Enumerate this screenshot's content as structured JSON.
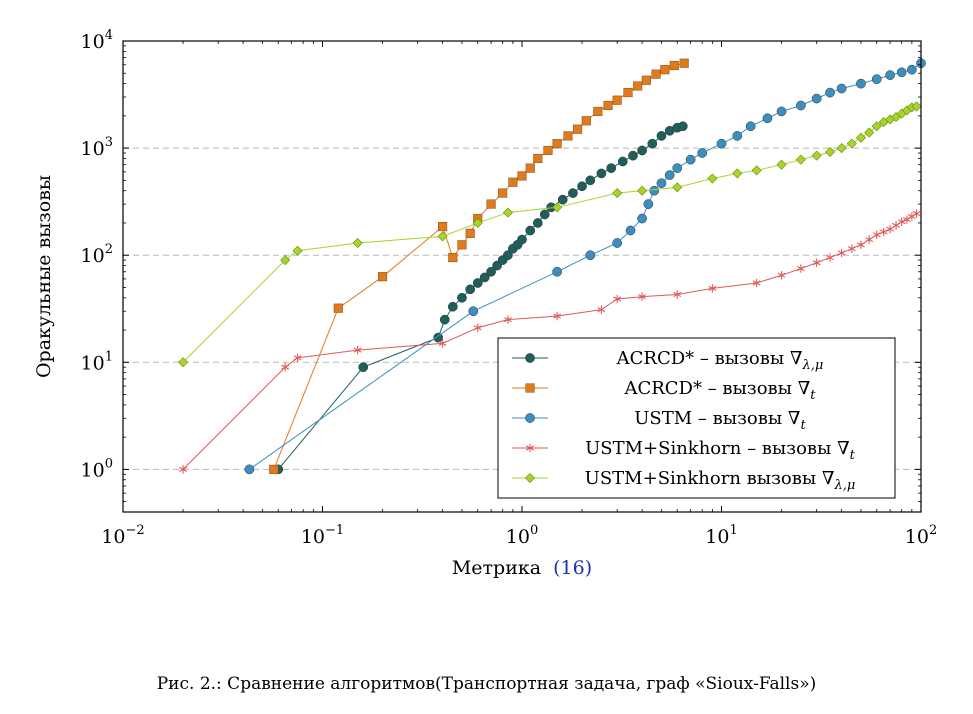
{
  "chart_data": {
    "type": "line",
    "xlabel": "Метрика",
    "xlabel_ref": "(16)",
    "ylabel": "Оракульные вызовы",
    "x_scale": "log",
    "y_scale": "log",
    "xlim": [
      0.01,
      100
    ],
    "ylim": [
      0.4,
      10000
    ],
    "x_ticks": [
      "10",
      "10",
      "10",
      "10",
      "10"
    ],
    "x_tick_exponents": [
      "−2",
      "−1",
      "0",
      "1",
      "2"
    ],
    "x_tick_values": [
      0.01,
      0.1,
      1,
      10,
      100
    ],
    "y_ticks": [
      "10",
      "10",
      "10",
      "10",
      "10"
    ],
    "y_tick_exponents": [
      "0",
      "1",
      "2",
      "3",
      "4"
    ],
    "y_tick_values": [
      1,
      10,
      100,
      1000,
      10000
    ],
    "grid": "horizontal dashed",
    "legend_position": "bottom-right",
    "series": [
      {
        "name": "ACRCD* – вызовы ∇",
        "name_sub": "λ,μ",
        "color": "#1f5f5b",
        "marker": "circle",
        "x": [
          0.06,
          0.16,
          0.38,
          0.41,
          0.45,
          0.5,
          0.55,
          0.6,
          0.65,
          0.7,
          0.75,
          0.8,
          0.85,
          0.9,
          0.95,
          1.0,
          1.1,
          1.2,
          1.3,
          1.4,
          1.6,
          1.8,
          2.0,
          2.2,
          2.5,
          2.8,
          3.2,
          3.6,
          4.0,
          4.5,
          5.0,
          5.5,
          6.0,
          6.4
        ],
        "y": [
          1,
          9,
          17,
          25,
          33,
          40,
          48,
          55,
          62,
          70,
          80,
          90,
          100,
          115,
          125,
          140,
          170,
          200,
          240,
          280,
          330,
          380,
          440,
          500,
          580,
          650,
          750,
          850,
          950,
          1100,
          1300,
          1450,
          1550,
          1600
        ]
      },
      {
        "name": "ACRCD* – вызовы ∇",
        "name_sub": "t",
        "color": "#e07a1f",
        "marker": "square",
        "x": [
          0.057,
          0.12,
          0.2,
          0.4,
          0.45,
          0.5,
          0.55,
          0.6,
          0.7,
          0.8,
          0.9,
          1.0,
          1.1,
          1.2,
          1.35,
          1.5,
          1.7,
          1.9,
          2.1,
          2.4,
          2.7,
          3.0,
          3.4,
          3.8,
          4.2,
          4.7,
          5.2,
          5.8,
          6.5
        ],
        "y": [
          1,
          32,
          63,
          185,
          95,
          125,
          160,
          220,
          300,
          380,
          480,
          550,
          650,
          800,
          950,
          1100,
          1300,
          1500,
          1800,
          2200,
          2500,
          2800,
          3300,
          3800,
          4300,
          4900,
          5400,
          5900,
          6200
        ]
      },
      {
        "name": "USTM – вызовы ∇",
        "name_sub": "t",
        "color": "#3a8fbf",
        "marker": "circle",
        "x": [
          0.043,
          0.57,
          1.5,
          2.2,
          3.0,
          3.5,
          4.0,
          4.3,
          4.6,
          5.0,
          5.5,
          6.0,
          7.0,
          8.0,
          10,
          12,
          14,
          17,
          20,
          25,
          30,
          35,
          40,
          50,
          60,
          70,
          80,
          90,
          100
        ],
        "y": [
          1,
          30,
          70,
          100,
          130,
          170,
          220,
          300,
          400,
          470,
          560,
          650,
          780,
          900,
          1100,
          1300,
          1600,
          1900,
          2200,
          2500,
          2900,
          3300,
          3600,
          4000,
          4400,
          4800,
          5100,
          5400,
          6200
        ]
      },
      {
        "name": "USTM+Sinkhorn – вызовы ∇",
        "name_sub": "t",
        "color": "#e05a5a",
        "marker": "star",
        "x": [
          0.02,
          0.065,
          0.075,
          0.15,
          0.4,
          0.6,
          0.85,
          1.5,
          2.5,
          3.0,
          4.0,
          6.0,
          9.0,
          15,
          20,
          25,
          30,
          35,
          40,
          45,
          50,
          55,
          60,
          65,
          70,
          75,
          80,
          85,
          90,
          95
        ],
        "y": [
          1,
          9,
          11,
          13,
          15,
          21,
          25,
          27,
          31,
          39,
          41,
          43,
          49,
          55,
          65,
          75,
          85,
          95,
          105,
          115,
          125,
          140,
          155,
          165,
          175,
          190,
          205,
          215,
          230,
          245
        ]
      },
      {
        "name": "USTM+Sinkhorn вызовы ∇",
        "name_sub": "λ,μ",
        "color": "#a8d42a",
        "marker": "diamond",
        "x": [
          0.02,
          0.065,
          0.075,
          0.15,
          0.4,
          0.6,
          0.85,
          1.5,
          3.0,
          4.0,
          6.0,
          9.0,
          12,
          15,
          20,
          25,
          30,
          35,
          40,
          45,
          50,
          55,
          60,
          65,
          70,
          75,
          80,
          85,
          90,
          95
        ],
        "y": [
          10,
          90,
          110,
          130,
          150,
          200,
          250,
          280,
          380,
          400,
          430,
          520,
          580,
          620,
          700,
          780,
          850,
          920,
          1000,
          1100,
          1250,
          1400,
          1600,
          1750,
          1850,
          1950,
          2100,
          2250,
          2400,
          2450
        ]
      }
    ]
  },
  "caption": "Рис. 2.: Сравнение алгоритмов(Транспортная задача, граф «Sioux-Falls»)"
}
